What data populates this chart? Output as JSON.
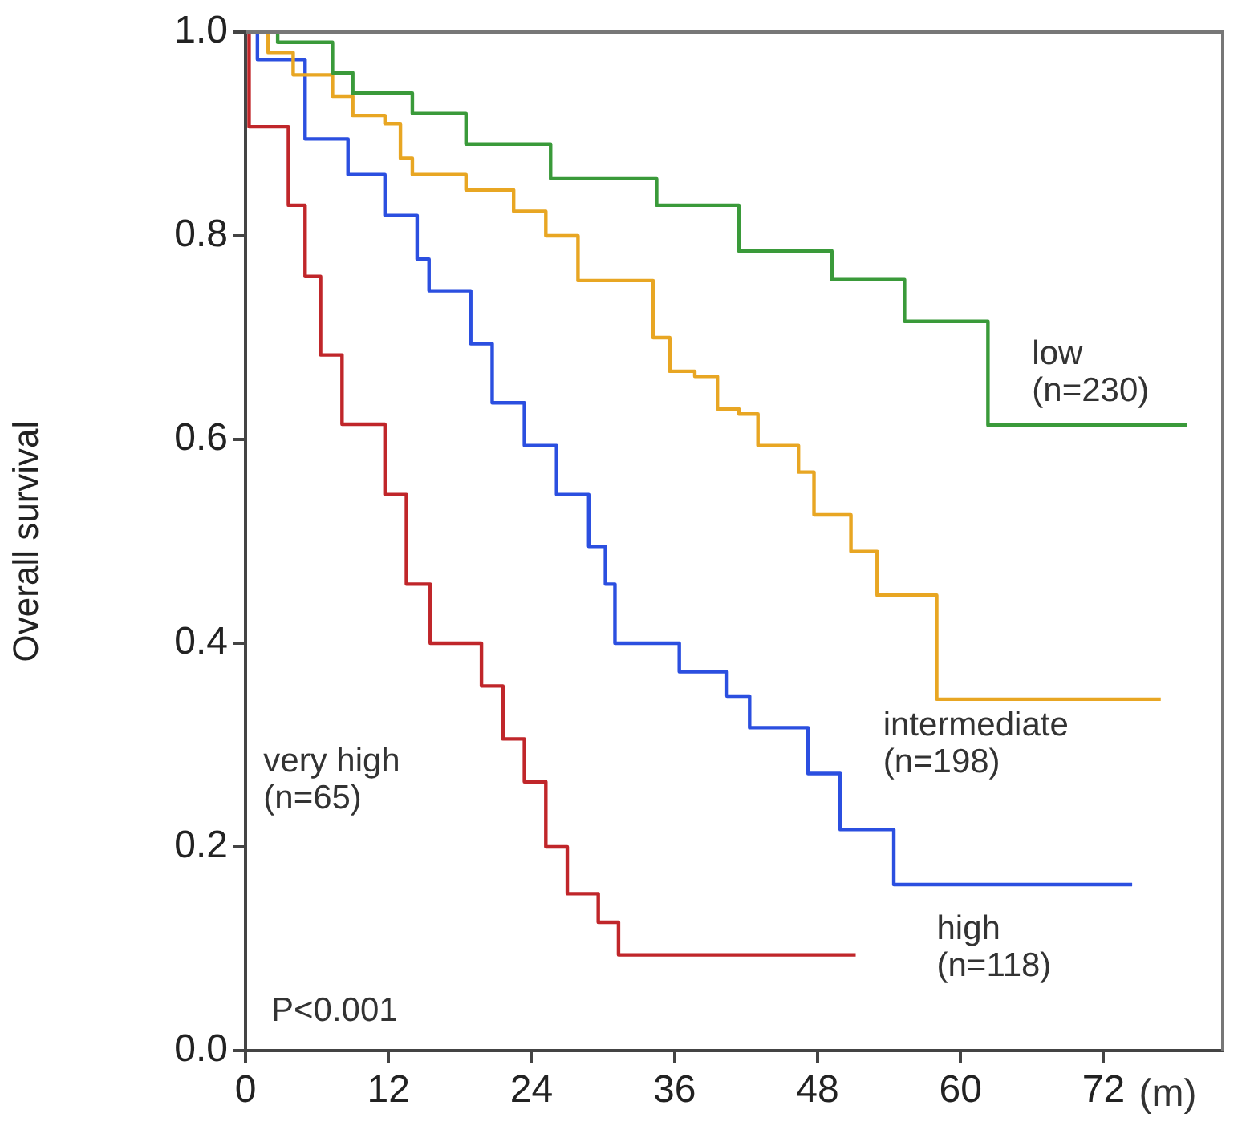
{
  "chart_data": {
    "type": "step",
    "xlabel": "(m)",
    "ylabel": "Overall survival",
    "xlim": [
      0,
      82
    ],
    "ylim": [
      0,
      1
    ],
    "xticks": [
      0,
      12,
      24,
      36,
      48,
      60,
      72
    ],
    "yticks": [
      {
        "value": 0,
        "label": "0.0"
      },
      0.2,
      0.4,
      0.6,
      0.8,
      {
        "value": 1,
        "label": "1.0"
      }
    ],
    "grid": false,
    "legend": false,
    "annotations": [
      "P<0.001"
    ],
    "series": [
      {
        "name": "low (n=230)",
        "color": "#3a9a3a",
        "x": [
          0,
          2.7,
          7.3,
          9,
          14,
          18.5,
          25.6,
          34.5,
          41.4,
          49.2,
          55.3,
          62.3,
          79
        ],
        "values": [
          1,
          0.99,
          0.96,
          0.94,
          0.92,
          0.89,
          0.856,
          0.83,
          0.785,
          0.757,
          0.716,
          0.614,
          0.614
        ]
      },
      {
        "name": "intermediate (n=198)",
        "color": "#e8a623",
        "x": [
          0,
          1.9,
          4,
          7.3,
          9,
          11.7,
          13,
          14,
          18.5,
          22.5,
          25.2,
          27.9,
          34.2,
          35.6,
          37.7,
          39.6,
          41.4,
          43,
          46.4,
          47.7,
          50.8,
          53,
          58,
          76.8
        ],
        "values": [
          1,
          0.98,
          0.958,
          0.937,
          0.918,
          0.91,
          0.876,
          0.86,
          0.845,
          0.824,
          0.8,
          0.756,
          0.7,
          0.667,
          0.662,
          0.63,
          0.625,
          0.594,
          0.568,
          0.526,
          0.49,
          0.447,
          0.345,
          0.345
        ]
      },
      {
        "name": "high (n=118)",
        "color": "#2b4fe0",
        "x": [
          0,
          1,
          5,
          8.6,
          11.7,
          14.4,
          15.4,
          18.9,
          20.7,
          23.4,
          26.1,
          28.8,
          30.2,
          31,
          36.4,
          40.4,
          42.3,
          47.2,
          49.9,
          54.4,
          74.4
        ],
        "values": [
          1,
          0.973,
          0.895,
          0.86,
          0.82,
          0.777,
          0.746,
          0.694,
          0.636,
          0.594,
          0.546,
          0.495,
          0.458,
          0.4,
          0.372,
          0.348,
          0.317,
          0.272,
          0.217,
          0.163,
          0.163
        ]
      },
      {
        "name": "very high (n=65)",
        "color": "#c0262a",
        "x": [
          0,
          0.3,
          3.6,
          5,
          6.3,
          8.1,
          11.7,
          13.5,
          15.5,
          19.8,
          21.6,
          23.4,
          25.2,
          27,
          29.6,
          31.3,
          51.2
        ],
        "values": [
          1,
          0.907,
          0.83,
          0.76,
          0.683,
          0.615,
          0.546,
          0.458,
          0.4,
          0.358,
          0.306,
          0.264,
          0.2,
          0.154,
          0.126,
          0.094,
          0.094
        ]
      }
    ]
  }
}
